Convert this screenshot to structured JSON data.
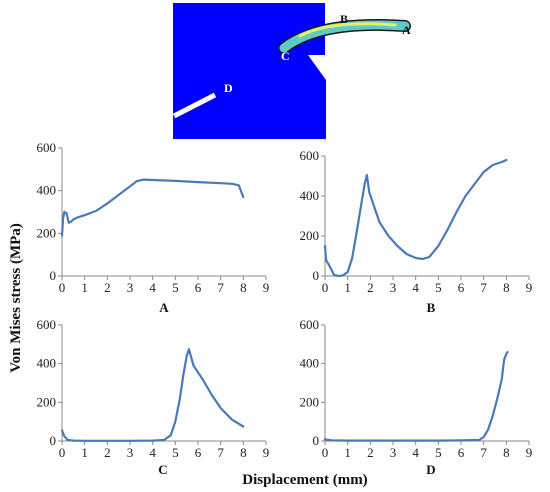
{
  "figure": {
    "ylabel": "Von Mises stress (MPa)",
    "xlabel": "Displacement (mm)",
    "schematic_labels": [
      "A",
      "B",
      "C",
      "D"
    ]
  },
  "chart_data": [
    {
      "type": "line",
      "panel_label": "A",
      "xlim": [
        0,
        9
      ],
      "ylim": [
        0,
        600
      ],
      "x_ticks": [
        0,
        1,
        2,
        3,
        4,
        5,
        6,
        7,
        8,
        9
      ],
      "y_ticks": [
        0,
        200,
        400,
        600
      ],
      "color": "#4a7ab5",
      "x": [
        0,
        0.05,
        0.1,
        0.2,
        0.3,
        0.4,
        0.5,
        0.7,
        1.0,
        1.5,
        2.0,
        2.5,
        3.0,
        3.3,
        3.6,
        4.0,
        5.0,
        6.0,
        7.0,
        7.5,
        7.8,
        8.0
      ],
      "y": [
        190,
        270,
        300,
        295,
        250,
        255,
        265,
        275,
        285,
        305,
        340,
        380,
        420,
        445,
        452,
        450,
        446,
        440,
        435,
        432,
        425,
        370
      ]
    },
    {
      "type": "line",
      "panel_label": "B",
      "xlim": [
        0,
        9
      ],
      "ylim": [
        0,
        600
      ],
      "x_ticks": [
        0,
        1,
        2,
        3,
        4,
        5,
        6,
        7,
        8,
        9
      ],
      "y_ticks": [
        0,
        200,
        400,
        600
      ],
      "color": "#4a7ab5",
      "x": [
        0,
        0.05,
        0.2,
        0.4,
        0.6,
        0.8,
        1.0,
        1.2,
        1.4,
        1.6,
        1.75,
        1.85,
        1.95,
        2.1,
        2.4,
        2.8,
        3.2,
        3.6,
        4.0,
        4.3,
        4.6,
        5.0,
        5.4,
        5.8,
        6.2,
        6.6,
        7.0,
        7.4,
        7.8,
        8.0
      ],
      "y": [
        150,
        80,
        50,
        5,
        0,
        3,
        20,
        90,
        220,
        360,
        460,
        505,
        420,
        370,
        270,
        200,
        150,
        110,
        90,
        85,
        95,
        150,
        230,
        320,
        400,
        460,
        520,
        555,
        570,
        580
      ]
    },
    {
      "type": "line",
      "panel_label": "C",
      "xlim": [
        0,
        9
      ],
      "ylim": [
        0,
        600
      ],
      "x_ticks": [
        0,
        1,
        2,
        3,
        4,
        5,
        6,
        7,
        8,
        9
      ],
      "y_ticks": [
        0,
        200,
        400,
        600
      ],
      "color": "#4a7ab5",
      "x": [
        0,
        0.1,
        0.25,
        0.5,
        1,
        2,
        3,
        4,
        4.5,
        4.8,
        5.0,
        5.2,
        5.35,
        5.5,
        5.6,
        5.8,
        6.2,
        6.6,
        7.0,
        7.5,
        8.0
      ],
      "y": [
        55,
        25,
        5,
        2,
        1,
        1,
        1,
        2,
        5,
        30,
        100,
        220,
        340,
        440,
        475,
        390,
        320,
        240,
        170,
        110,
        75
      ]
    },
    {
      "type": "line",
      "panel_label": "D",
      "xlim": [
        0,
        9
      ],
      "ylim": [
        0,
        600
      ],
      "x_ticks": [
        0,
        1,
        2,
        3,
        4,
        5,
        6,
        7,
        8,
        9
      ],
      "y_ticks": [
        0,
        200,
        400,
        600
      ],
      "color": "#4a7ab5",
      "x": [
        0,
        0.1,
        0.3,
        1,
        2,
        3,
        4,
        5,
        6,
        6.8,
        7.0,
        7.2,
        7.4,
        7.6,
        7.8,
        7.9,
        8.0,
        8.05
      ],
      "y": [
        10,
        6,
        3,
        2,
        2,
        2,
        2,
        2,
        3,
        5,
        20,
        60,
        130,
        220,
        320,
        420,
        450,
        460
      ]
    }
  ]
}
